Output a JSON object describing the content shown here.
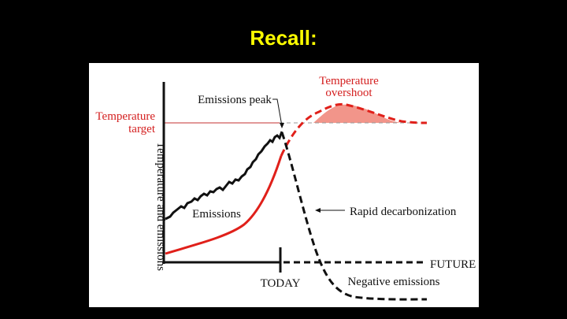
{
  "header": {
    "title": "Recall:"
  },
  "diagram": {
    "axis_label": "Temperature and emissions",
    "temperature_target": [
      "Temperature",
      "target"
    ],
    "emissions_peak": "Emissions peak",
    "temperature_overshoot": [
      "Temperature",
      "overshoot"
    ],
    "emissions": "Emissions",
    "rapid_decarbonization": "Rapid decarbonization",
    "future": "FUTURE",
    "today": "TODAY",
    "negative_emissions": "Negative emissions"
  }
}
